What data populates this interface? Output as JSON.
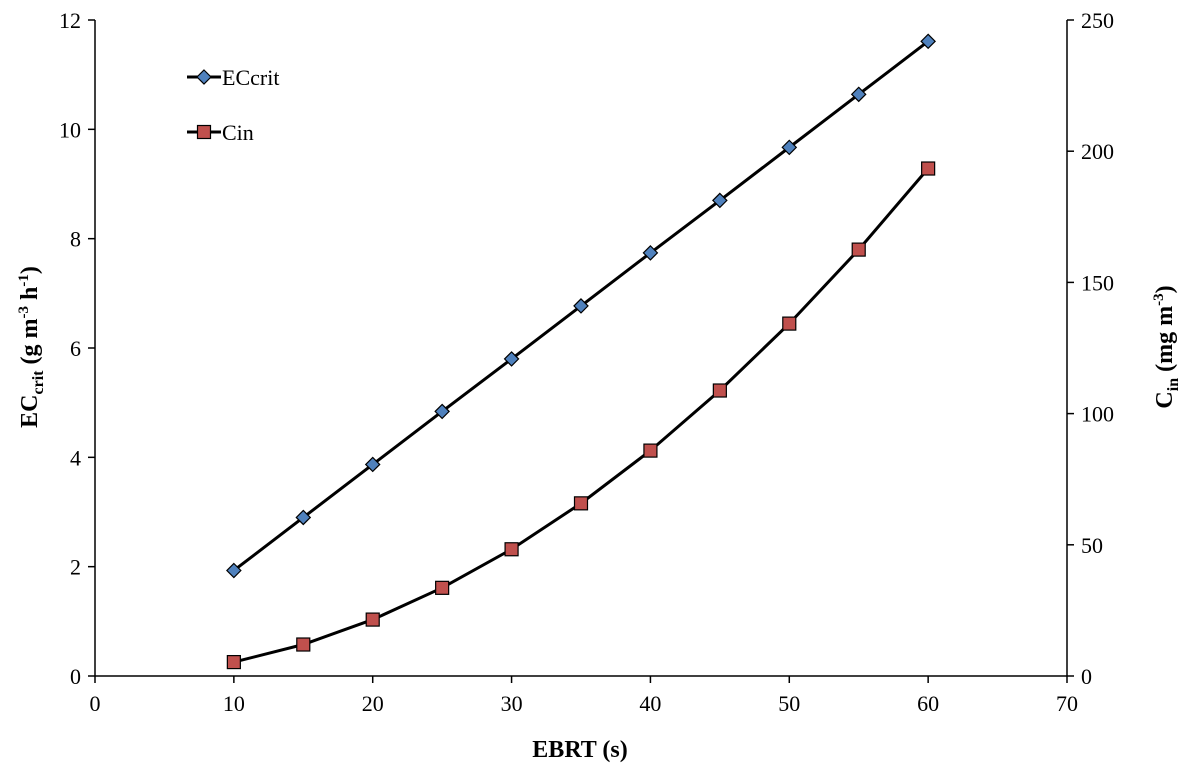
{
  "chart_data": {
    "type": "line",
    "title": "",
    "x": [
      10,
      15,
      20,
      25,
      30,
      35,
      40,
      45,
      50,
      55,
      60
    ],
    "xlabel": "EBRT (s)",
    "xlim": [
      0,
      70
    ],
    "xticks": [
      0,
      10,
      20,
      30,
      40,
      50,
      60,
      70
    ],
    "ylabel_left": {
      "main": "EC",
      "sub": "crit",
      "rest1": " (g m",
      "sup1": "-3",
      "rest2": " h",
      "sup2": "-1",
      "rest3": ")"
    },
    "ylim_left": [
      0,
      12
    ],
    "yticks_left": [
      0,
      2,
      4,
      6,
      8,
      10,
      12
    ],
    "ylabel_right": {
      "main": "C",
      "sub": "in",
      "rest1": " (mg m",
      "sup1": "-3",
      "rest2": ")"
    },
    "ylim_right": [
      0,
      250
    ],
    "yticks_right": [
      0,
      50,
      100,
      150,
      200,
      250
    ],
    "grid": false,
    "legend_position": "top-left",
    "series": [
      {
        "name": "ECcrit",
        "axis": "left",
        "marker": "diamond",
        "color": "#4f81bd",
        "values": [
          1.93,
          2.9,
          3.87,
          4.84,
          5.8,
          6.77,
          7.74,
          8.7,
          9.67,
          10.64,
          11.61
        ]
      },
      {
        "name": "Cin",
        "axis": "right",
        "marker": "square",
        "color": "#c0504d",
        "values": [
          5.3,
          12.0,
          21.5,
          33.6,
          48.3,
          65.8,
          85.9,
          108.8,
          134.3,
          162.5,
          193.4
        ]
      }
    ]
  }
}
